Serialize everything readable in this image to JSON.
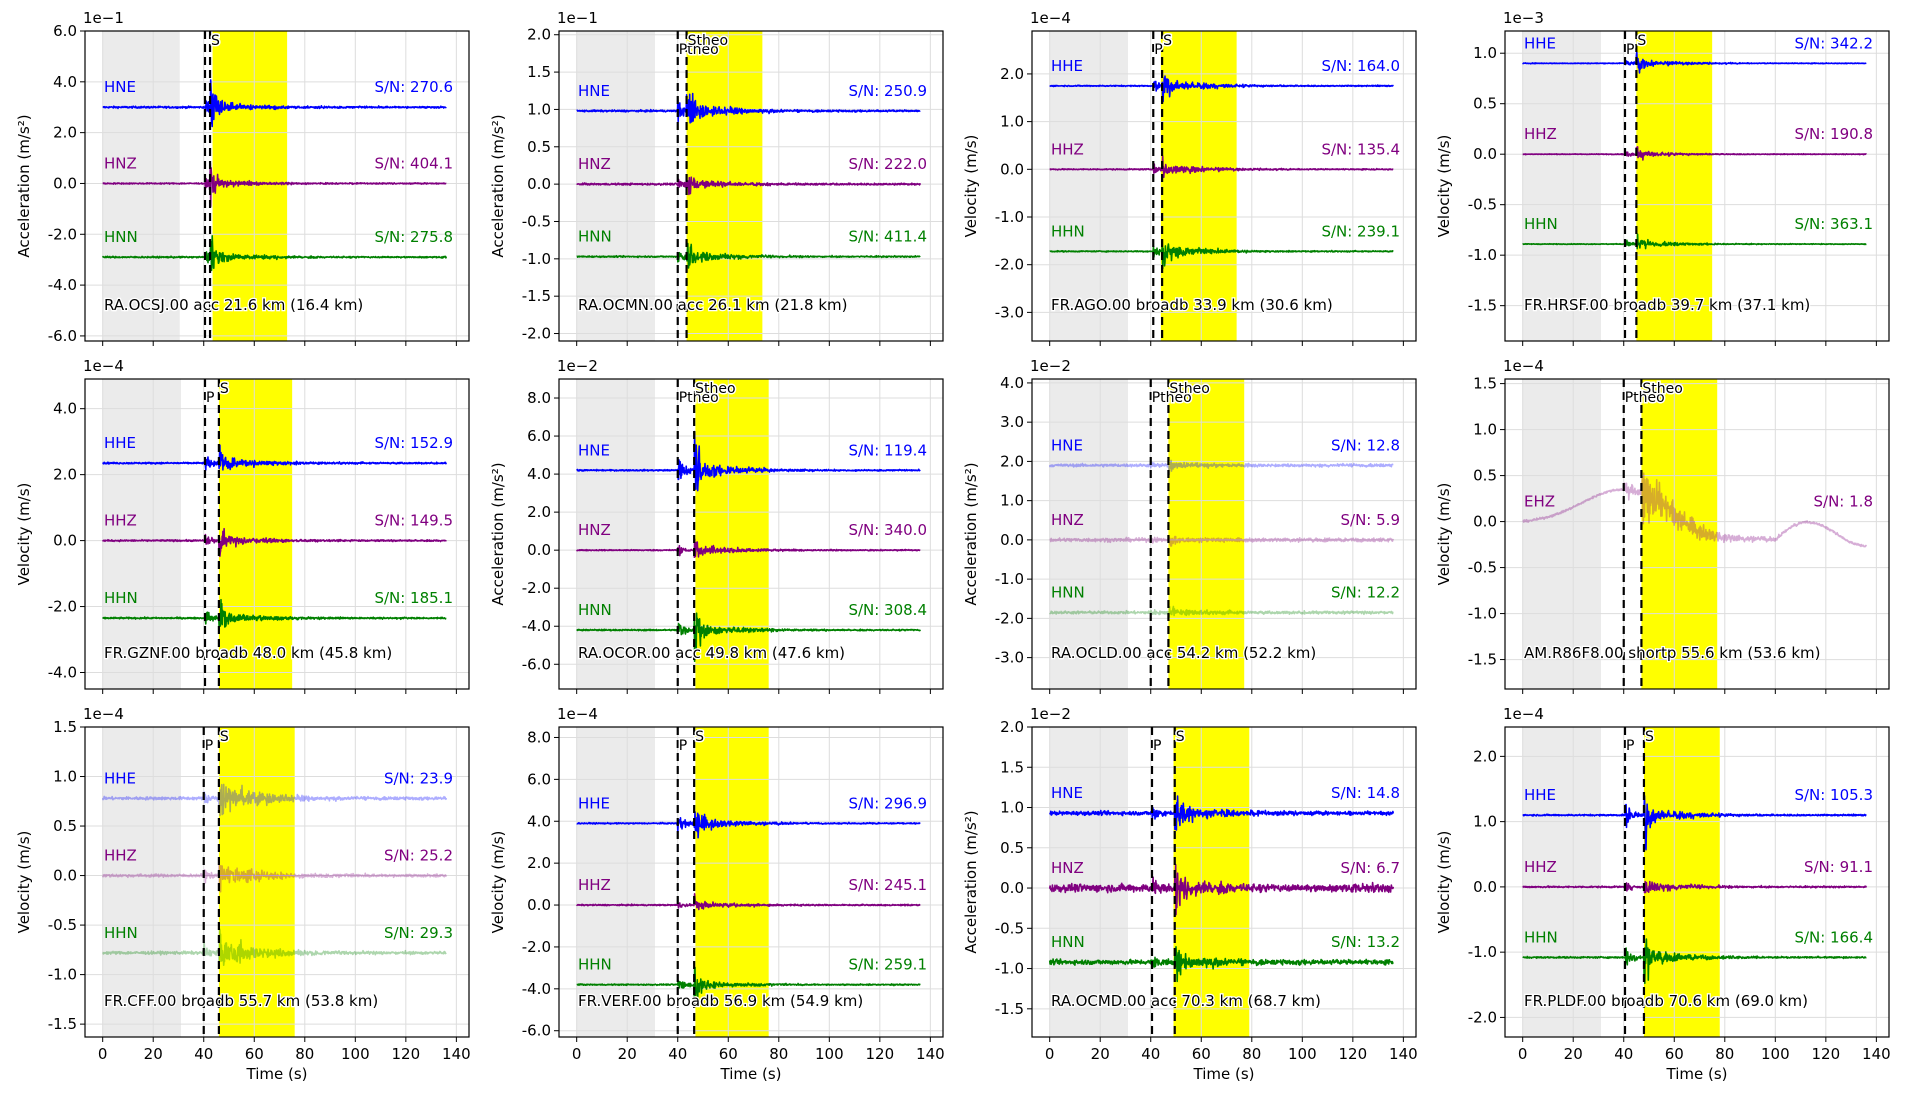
{
  "colors": {
    "HNE": "#0000ff",
    "HHE": "#0000ff",
    "HNZ": "#800080",
    "HHZ": "#800080",
    "EHZ": "#800080",
    "HNN": "#008000",
    "HHN": "#008000",
    "noise_window": "#ebebeb",
    "signal_window": "#ffff00",
    "grid": "#dddddd"
  },
  "x_ticks": [
    "0",
    "20",
    "40",
    "60",
    "80",
    "100",
    "120",
    "140"
  ],
  "x_label": "Time (s)",
  "chart_data": [
    {
      "type": "line",
      "station": "RA.OCSJ.00 acc 21.6 km (16.4 km)",
      "ylabel": "Acceleration (m/s²)",
      "multiplier": "1e−1",
      "yticks": [
        "6.0",
        "4.0",
        "2.0",
        "0.0",
        "-2.0",
        "-4.0",
        "-6.0"
      ],
      "ylim": [
        -6.2,
        6.0
      ],
      "xlim": [
        -7,
        145
      ],
      "p_time": 40.5,
      "s_time": 42.5,
      "p_label": "",
      "s_label": "S",
      "noise_window": [
        0,
        30.5
      ],
      "signal_window": [
        43.5,
        73
      ],
      "series": [
        {
          "name": "HNE",
          "offset": 3.0,
          "sn": "S/N: 270.6",
          "amp": 2.2,
          "tail": 0.4,
          "noise": 0.06,
          "faded": false
        },
        {
          "name": "HNZ",
          "offset": 0.0,
          "sn": "S/N: 404.1",
          "amp": 1.6,
          "tail": 0.3,
          "noise": 0.04,
          "faded": false
        },
        {
          "name": "HNN",
          "offset": -2.9,
          "sn": "S/N: 275.8",
          "amp": 1.8,
          "tail": 0.35,
          "noise": 0.05,
          "faded": false
        }
      ]
    },
    {
      "type": "line",
      "station": "RA.OCMN.00 acc 26.1 km (21.8 km)",
      "ylabel": "Acceleration (m/s²)",
      "multiplier": "1e−1",
      "yticks": [
        "2.0",
        "1.5",
        "1.0",
        "0.5",
        "0.0",
        "-0.5",
        "-1.0",
        "-1.5",
        "-2.0"
      ],
      "ylim": [
        -2.1,
        2.05
      ],
      "xlim": [
        -7,
        145
      ],
      "p_time": 40.0,
      "s_time": 43.5,
      "p_label": "Ptheo",
      "s_label": "Stheo",
      "noise_window": [
        0,
        31
      ],
      "signal_window": [
        43.5,
        73.5
      ],
      "series": [
        {
          "name": "HNE",
          "offset": 0.98,
          "sn": "S/N: 250.9",
          "amp": 0.75,
          "tail": 0.2,
          "noise": 0.02,
          "faded": false
        },
        {
          "name": "HNZ",
          "offset": 0.0,
          "sn": "S/N: 222.0",
          "amp": 0.45,
          "tail": 0.12,
          "noise": 0.02,
          "faded": false
        },
        {
          "name": "HNN",
          "offset": -0.97,
          "sn": "S/N: 411.4",
          "amp": 0.6,
          "tail": 0.15,
          "noise": 0.015,
          "faded": false
        }
      ]
    },
    {
      "type": "line",
      "station": "FR.AGO.00 broadb 33.9 km (30.6 km)",
      "ylabel": "Velocity (m/s)",
      "multiplier": "1e−4",
      "yticks": [
        "2.0",
        "1.0",
        "0.0",
        "-1.0",
        "-2.0",
        "-3.0"
      ],
      "ylim": [
        -3.6,
        2.9
      ],
      "xlim": [
        -7,
        145
      ],
      "p_time": 41.0,
      "s_time": 44.5,
      "p_label": "P",
      "s_label": "S",
      "noise_window": [
        0,
        31
      ],
      "signal_window": [
        44,
        74
      ],
      "series": [
        {
          "name": "HHE",
          "offset": 1.75,
          "sn": "S/N: 164.0",
          "amp": 0.7,
          "tail": 0.25,
          "noise": 0.02,
          "faded": false
        },
        {
          "name": "HHZ",
          "offset": 0.0,
          "sn": "S/N: 135.4",
          "amp": 0.55,
          "tail": 0.2,
          "noise": 0.02,
          "faded": false
        },
        {
          "name": "HHN",
          "offset": -1.72,
          "sn": "S/N: 239.1",
          "amp": 0.85,
          "tail": 0.25,
          "noise": 0.02,
          "faded": false
        }
      ]
    },
    {
      "type": "line",
      "station": "FR.HRSF.00 broadb 39.7 km (37.1 km)",
      "ylabel": "Velocity (m/s)",
      "multiplier": "1e−3",
      "yticks": [
        "1.0",
        "0.5",
        "0.0",
        "-0.5",
        "-1.0",
        "-1.5"
      ],
      "ylim": [
        -1.85,
        1.22
      ],
      "xlim": [
        -7,
        145
      ],
      "p_time": 40.5,
      "s_time": 45.0,
      "p_label": "P",
      "s_label": "S",
      "noise_window": [
        0,
        31
      ],
      "signal_window": [
        45,
        75
      ],
      "series": [
        {
          "name": "HHE",
          "offset": 0.9,
          "sn": "S/N: 342.2",
          "amp": 0.2,
          "tail": 0.06,
          "noise": 0.006,
          "faded": false
        },
        {
          "name": "HHZ",
          "offset": 0.0,
          "sn": "S/N: 190.8",
          "amp": 0.18,
          "tail": 0.05,
          "noise": 0.006,
          "faded": false
        },
        {
          "name": "HHN",
          "offset": -0.89,
          "sn": "S/N: 363.1",
          "amp": 0.22,
          "tail": 0.06,
          "noise": 0.006,
          "faded": false
        }
      ]
    },
    {
      "type": "line",
      "station": "FR.GZNF.00 broadb 48.0 km (45.8 km)",
      "ylabel": "Velocity (m/s)",
      "multiplier": "1e−4",
      "yticks": [
        "4.0",
        "2.0",
        "0.0",
        "-2.0",
        "-4.0"
      ],
      "ylim": [
        -4.5,
        4.9
      ],
      "xlim": [
        -7,
        145
      ],
      "p_time": 40.5,
      "s_time": 46.0,
      "p_label": "P",
      "s_label": "S",
      "noise_window": [
        0,
        31
      ],
      "signal_window": [
        46,
        75
      ],
      "series": [
        {
          "name": "HHE",
          "offset": 2.35,
          "sn": "S/N: 152.9",
          "amp": 1.4,
          "tail": 0.35,
          "noise": 0.04,
          "faded": false
        },
        {
          "name": "HHZ",
          "offset": 0.0,
          "sn": "S/N: 149.5",
          "amp": 0.9,
          "tail": 0.3,
          "noise": 0.04,
          "faded": false
        },
        {
          "name": "HHN",
          "offset": -2.35,
          "sn": "S/N: 185.1",
          "amp": 1.6,
          "tail": 0.35,
          "noise": 0.04,
          "faded": false
        }
      ]
    },
    {
      "type": "line",
      "station": "RA.OCOR.00 acc 49.8 km (47.6 km)",
      "ylabel": "Acceleration (m/s²)",
      "multiplier": "1e−2",
      "yticks": [
        "8.0",
        "6.0",
        "4.0",
        "2.0",
        "0.0",
        "-2.0",
        "-4.0",
        "-6.0"
      ],
      "ylim": [
        -7.3,
        9.0
      ],
      "xlim": [
        -7,
        145
      ],
      "p_time": 40.0,
      "s_time": 46.5,
      "p_label": "Ptheo",
      "s_label": "Stheo",
      "noise_window": [
        0,
        31
      ],
      "signal_window": [
        47,
        76
      ],
      "series": [
        {
          "name": "HNE",
          "offset": 4.2,
          "sn": "S/N: 119.4",
          "amp": 3.6,
          "tail": 0.8,
          "noise": 0.06,
          "faded": false
        },
        {
          "name": "HNZ",
          "offset": 0.0,
          "sn": "S/N: 340.0",
          "amp": 1.5,
          "tail": 0.5,
          "noise": 0.05,
          "faded": false
        },
        {
          "name": "HNN",
          "offset": -4.2,
          "sn": "S/N: 308.4",
          "amp": 2.8,
          "tail": 0.6,
          "noise": 0.06,
          "faded": false
        }
      ]
    },
    {
      "type": "line",
      "station": "RA.OCLD.00 acc 54.2 km (52.2 km)",
      "ylabel": "Acceleration (m/s²)",
      "multiplier": "1e−2",
      "yticks": [
        "4.0",
        "3.0",
        "2.0",
        "1.0",
        "0.0",
        "-1.0",
        "-2.0",
        "-3.0"
      ],
      "ylim": [
        -3.8,
        4.1
      ],
      "xlim": [
        -7,
        145
      ],
      "p_time": 40.0,
      "s_time": 47.0,
      "p_label": "Ptheo",
      "s_label": "Stheo",
      "noise_window": [
        0,
        31
      ],
      "signal_window": [
        47,
        77
      ],
      "series": [
        {
          "name": "HNE",
          "offset": 1.9,
          "sn": "S/N: 12.8",
          "amp": 0.45,
          "tail": 0.15,
          "noise": 0.06,
          "faded": true
        },
        {
          "name": "HNZ",
          "offset": 0.0,
          "sn": "S/N: 5.9",
          "amp": 0.35,
          "tail": 0.12,
          "noise": 0.08,
          "faded": true
        },
        {
          "name": "HNN",
          "offset": -1.85,
          "sn": "S/N: 12.2",
          "amp": 0.5,
          "tail": 0.15,
          "noise": 0.06,
          "faded": true
        }
      ]
    },
    {
      "type": "line",
      "station": "AM.R86F8.00 shortp 55.6 km (53.6 km)",
      "ylabel": "Velocity (m/s)",
      "multiplier": "1e−4",
      "yticks": [
        "1.5",
        "1.0",
        "0.5",
        "0.0",
        "-0.5",
        "-1.0",
        "-1.5"
      ],
      "ylim": [
        -1.82,
        1.55
      ],
      "xlim": [
        -7,
        145
      ],
      "p_time": 40.0,
      "s_time": 47.0,
      "p_label": "Ptheo",
      "s_label": "Stheo",
      "noise_window": [
        0,
        31
      ],
      "signal_window": [
        47,
        77
      ],
      "series": [
        {
          "name": "EHZ",
          "offset": 0.0,
          "sn": "S/N: 1.8",
          "amp": 1.2,
          "tail": 0.5,
          "noise": 0.02,
          "faded": true,
          "drift": true
        }
      ]
    },
    {
      "type": "line",
      "station": "FR.CFF.00 broadb 55.7 km (53.8 km)",
      "ylabel": "Velocity (m/s)",
      "multiplier": "1e−4",
      "yticks": [
        "1.5",
        "1.0",
        "0.5",
        "0.0",
        "-0.5",
        "-1.0",
        "-1.5"
      ],
      "ylim": [
        -1.63,
        1.5
      ],
      "xlim": [
        -7,
        145
      ],
      "p_time": 40.0,
      "s_time": 46.0,
      "p_label": "P",
      "s_label": "S",
      "noise_window": [
        0,
        31
      ],
      "signal_window": [
        46,
        76
      ],
      "series": [
        {
          "name": "HHE",
          "offset": 0.78,
          "sn": "S/N: 23.9",
          "amp": 0.4,
          "tail": 0.25,
          "noise": 0.025,
          "faded": true
        },
        {
          "name": "HHZ",
          "offset": 0.0,
          "sn": "S/N: 25.2",
          "amp": 0.35,
          "tail": 0.2,
          "noise": 0.025,
          "faded": true
        },
        {
          "name": "HHN",
          "offset": -0.78,
          "sn": "S/N: 29.3",
          "amp": 0.45,
          "tail": 0.25,
          "noise": 0.025,
          "faded": true
        }
      ]
    },
    {
      "type": "line",
      "station": "FR.VERF.00 broadb 56.9 km (54.9 km)",
      "ylabel": "Velocity (m/s)",
      "multiplier": "1e−4",
      "yticks": [
        "8.0",
        "6.0",
        "4.0",
        "2.0",
        "0.0",
        "-2.0",
        "-4.0",
        "-6.0"
      ],
      "ylim": [
        -6.3,
        8.5
      ],
      "xlim": [
        -7,
        145
      ],
      "p_time": 40.0,
      "s_time": 46.5,
      "p_label": "P",
      "s_label": "S",
      "noise_window": [
        0,
        31
      ],
      "signal_window": [
        47,
        76
      ],
      "series": [
        {
          "name": "HHE",
          "offset": 3.9,
          "sn": "S/N: 296.9",
          "amp": 2.4,
          "tail": 0.5,
          "noise": 0.05,
          "faded": false
        },
        {
          "name": "HHZ",
          "offset": 0.0,
          "sn": "S/N: 245.1",
          "amp": 0.8,
          "tail": 0.3,
          "noise": 0.05,
          "faded": false
        },
        {
          "name": "HHN",
          "offset": -3.8,
          "sn": "S/N: 259.1",
          "amp": 1.9,
          "tail": 0.4,
          "noise": 0.05,
          "faded": false
        }
      ]
    },
    {
      "type": "line",
      "station": "RA.OCMD.00 acc 70.3 km (68.7 km)",
      "ylabel": "Acceleration (m/s²)",
      "multiplier": "1e−2",
      "yticks": [
        "2.0",
        "1.5",
        "1.0",
        "0.5",
        "0.0",
        "-0.5",
        "-1.0",
        "-1.5"
      ],
      "ylim": [
        -1.85,
        2.0
      ],
      "xlim": [
        -7,
        145
      ],
      "p_time": 40.5,
      "s_time": 49.5,
      "p_label": "P",
      "s_label": "S",
      "noise_window": [
        0,
        31
      ],
      "signal_window": [
        49,
        79
      ],
      "series": [
        {
          "name": "HNE",
          "offset": 0.93,
          "sn": "S/N: 14.8",
          "amp": 0.7,
          "tail": 0.18,
          "noise": 0.04,
          "faded": false
        },
        {
          "name": "HNZ",
          "offset": 0.0,
          "sn": "S/N: 6.7",
          "amp": 0.75,
          "tail": 0.2,
          "noise": 0.08,
          "faded": false
        },
        {
          "name": "HNN",
          "offset": -0.92,
          "sn": "S/N: 13.2",
          "amp": 0.6,
          "tail": 0.18,
          "noise": 0.05,
          "faded": false
        }
      ]
    },
    {
      "type": "line",
      "station": "FR.PLDF.00 broadb 70.6 km (69.0 km)",
      "ylabel": "Velocity (m/s)",
      "multiplier": "1e−4",
      "yticks": [
        "2.0",
        "1.0",
        "0.0",
        "-1.0",
        "-2.0"
      ],
      "ylim": [
        -2.3,
        2.45
      ],
      "xlim": [
        -7,
        145
      ],
      "p_time": 40.5,
      "s_time": 48.0,
      "p_label": "P",
      "s_label": "S",
      "noise_window": [
        0,
        31
      ],
      "signal_window": [
        48,
        78
      ],
      "series": [
        {
          "name": "HHE",
          "offset": 1.1,
          "sn": "S/N: 105.3",
          "amp": 1.0,
          "tail": 0.2,
          "noise": 0.02,
          "faded": false
        },
        {
          "name": "HHZ",
          "offset": 0.0,
          "sn": "S/N: 91.1",
          "amp": 0.4,
          "tail": 0.15,
          "noise": 0.02,
          "faded": false
        },
        {
          "name": "HHN",
          "offset": -1.08,
          "sn": "S/N: 166.4",
          "amp": 0.9,
          "tail": 0.2,
          "noise": 0.02,
          "faded": false
        }
      ]
    }
  ]
}
